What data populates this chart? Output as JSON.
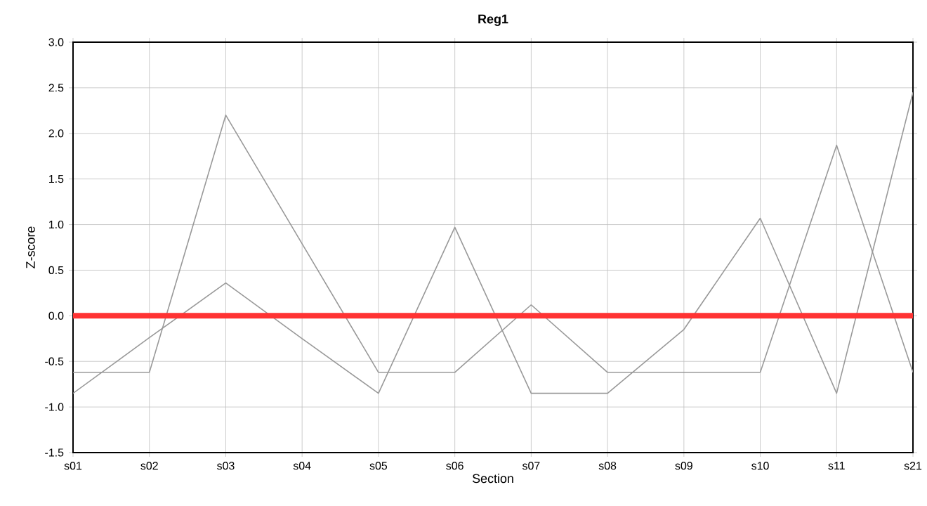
{
  "chart_data": {
    "type": "line",
    "title": "Reg1",
    "xlabel": "Section",
    "ylabel": "Z-score",
    "categories": [
      "s01",
      "s02",
      "s03",
      "s04",
      "s05",
      "s06",
      "s07",
      "s08",
      "s09",
      "s10",
      "s11",
      "s21"
    ],
    "series": [
      {
        "color": "#999999",
        "values": [
          -0.62,
          -0.62,
          2.2,
          0.79,
          -0.62,
          -0.62,
          0.12,
          -0.62,
          -0.62,
          -0.62,
          1.87,
          -0.62
        ]
      },
      {
        "color": "#999999",
        "values": [
          -0.85,
          -0.24,
          0.36,
          -0.25,
          -0.85,
          0.97,
          -0.85,
          -0.85,
          -0.15,
          1.07,
          -0.85,
          2.45
        ]
      }
    ],
    "ylim": [
      -1.5,
      3.0
    ],
    "yticks": [
      {
        "value": -1.5,
        "label": "-1.5"
      },
      {
        "value": -1.0,
        "label": "-1.0"
      },
      {
        "value": -0.5,
        "label": "-0.5"
      },
      {
        "value": 0,
        "label": "0.0"
      },
      {
        "value": 0.5,
        "label": "0.5"
      },
      {
        "value": 1.0,
        "label": "1.0"
      },
      {
        "value": 1.5,
        "label": "1.5"
      },
      {
        "value": 2.0,
        "label": "2.0"
      },
      {
        "value": 2.5,
        "label": "2.5"
      },
      {
        "value": 3.0,
        "label": "3.0"
      }
    ],
    "ref_lines": [
      {
        "axis": "y",
        "value": 0,
        "color": "#ff3333"
      }
    ],
    "grid": true,
    "marker": "none",
    "line_style": "solid"
  }
}
